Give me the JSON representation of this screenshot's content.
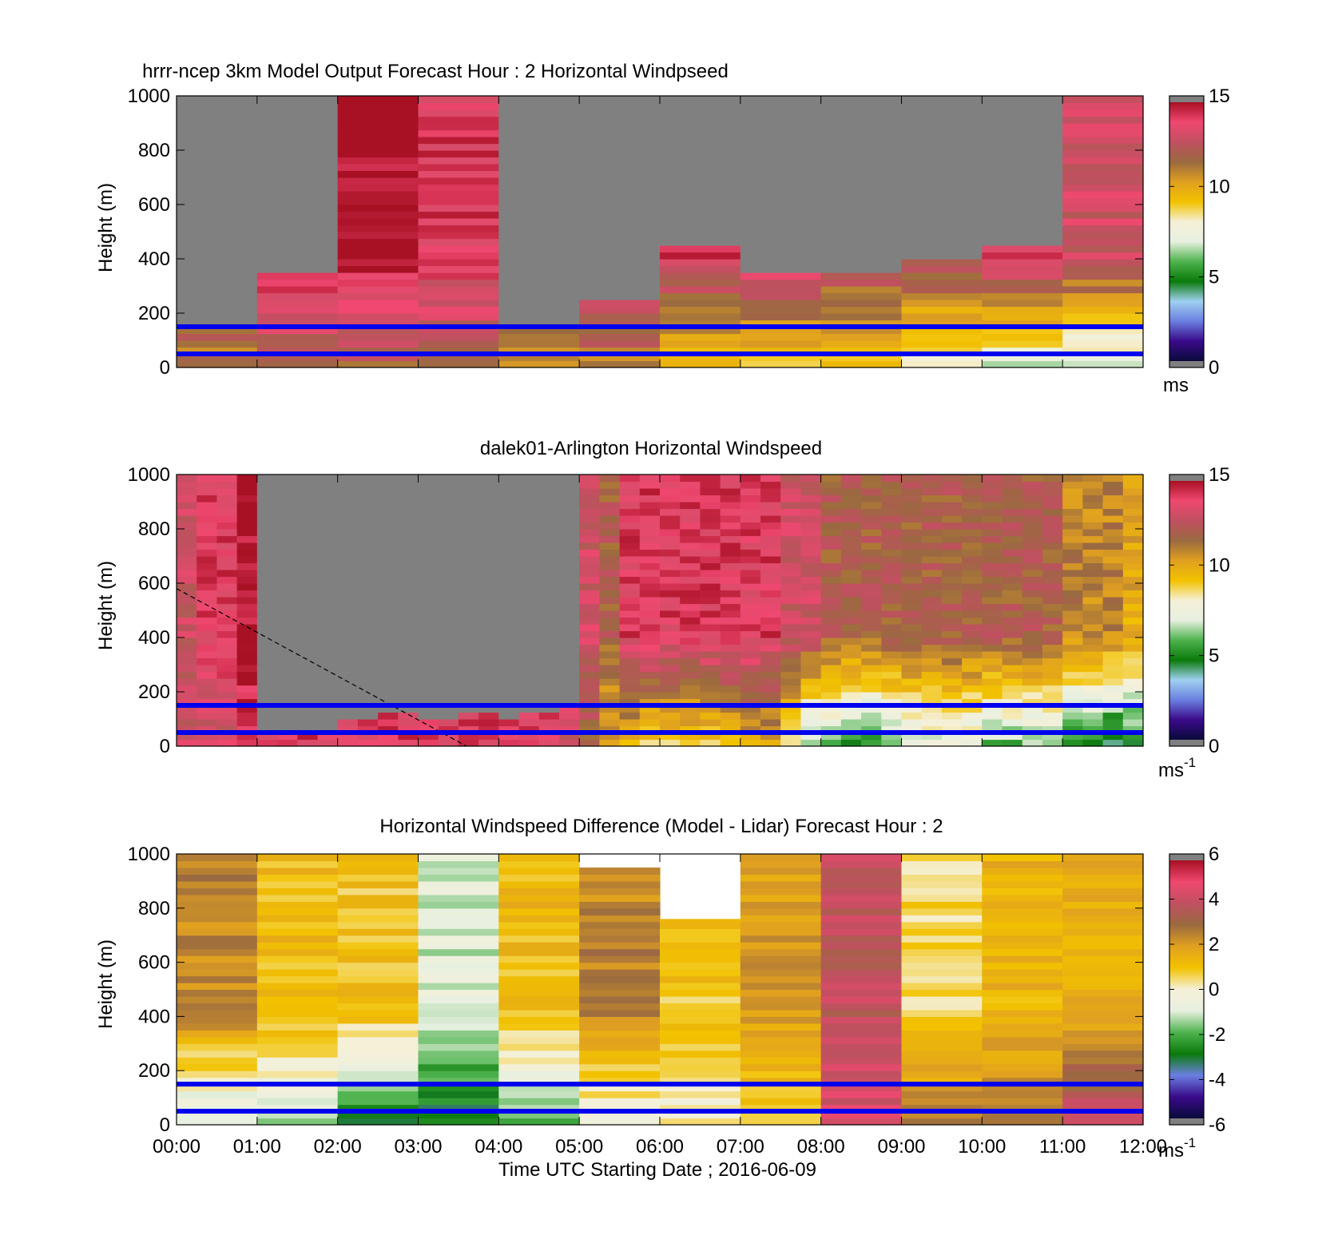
{
  "figure": {
    "xlabel": "Time UTC  Starting Date ; 2016-06-09",
    "xticks": [
      "00:00",
      "01:00",
      "02:00",
      "03:00",
      "04:00",
      "05:00",
      "06:00",
      "07:00",
      "08:00",
      "09:00",
      "10:00",
      "11:00",
      "12:00"
    ]
  },
  "colors": {
    "overlay_lines": "#0000ee",
    "nan_fill": "#808080",
    "colormap_speed": [
      "#0a0a3a",
      "#3a0a8a",
      "#6a7fe0",
      "#9fd0f0",
      "#0a7a0a",
      "#4fb34f",
      "#e8f0e0",
      "#f5f0d8",
      "#f2c200",
      "#e0a020",
      "#9a6a40",
      "#c05060",
      "#f04870",
      "#a81024"
    ],
    "colormap_diff": [
      "#0a0a3a",
      "#3a0a8a",
      "#6a7fe0",
      "#0a7a0a",
      "#4fb34f",
      "#e8f0e0",
      "#f5f0d8",
      "#f2c200",
      "#e0a020",
      "#9a6a40",
      "#c05060",
      "#f04870",
      "#a81024"
    ]
  },
  "chart_data": [
    {
      "type": "heatmap",
      "title": "hrrr-ncep 3km Model Output   Forecast Hour : 2 Horizontal Windpseed",
      "xlabel": "",
      "ylabel": "Height (m)",
      "xlim": [
        0,
        12
      ],
      "ylim": [
        0,
        1000
      ],
      "yticks": [
        "0",
        "200",
        "400",
        "600",
        "800",
        "1000"
      ],
      "colorbar": {
        "ticks": [
          "0",
          "5",
          "10",
          "15"
        ],
        "range": [
          0,
          15
        ],
        "unit": "ms"
      },
      "overlay_heights_m": [
        150,
        50
      ],
      "grid": false,
      "columns": [
        {
          "t": "00:00",
          "top_valid_m": 150,
          "surface": 11,
          "aloft": 14
        },
        {
          "t": "01:00",
          "top_valid_m": 350,
          "surface": 12,
          "aloft": 15
        },
        {
          "t": "02:00",
          "top_valid_m": 1000,
          "surface": 12,
          "aloft": 15
        },
        {
          "t": "03:00",
          "top_valid_m": 1000,
          "surface": 12,
          "aloft": 14
        },
        {
          "t": "04:00",
          "top_valid_m": 150,
          "surface": 11,
          "aloft": 14
        },
        {
          "t": "05:00",
          "top_valid_m": 250,
          "surface": 11,
          "aloft": 15
        },
        {
          "t": "06:00",
          "top_valid_m": 450,
          "surface": 9,
          "aloft": 14
        },
        {
          "t": "07:00",
          "top_valid_m": 350,
          "surface": 9,
          "aloft": 14
        },
        {
          "t": "08:00",
          "top_valid_m": 350,
          "surface": 9,
          "aloft": 13
        },
        {
          "t": "09:00",
          "top_valid_m": 400,
          "surface": 8,
          "aloft": 13
        },
        {
          "t": "10:00",
          "top_valid_m": 450,
          "surface": 7,
          "aloft": 14
        },
        {
          "t": "11:00",
          "top_valid_m": 1000,
          "surface": 7,
          "aloft": 13
        }
      ]
    },
    {
      "type": "heatmap",
      "title": "dalek01-Arlington  Horizontal Windspeed",
      "xlabel": "",
      "ylabel": "Height (m)",
      "xlim": [
        0,
        12
      ],
      "ylim": [
        0,
        1000
      ],
      "yticks": [
        "0",
        "200",
        "400",
        "600",
        "800",
        "1000"
      ],
      "colorbar": {
        "ticks": [
          "0",
          "5",
          "10",
          "15"
        ],
        "range": [
          0,
          15
        ],
        "unit": "ms",
        "unit_exp": "-1"
      },
      "overlay_heights_m": [
        150,
        50
      ],
      "dashed_line": [
        [
          0,
          580
        ],
        [
          3.6,
          0
        ]
      ],
      "profiles_per_hour": 4,
      "grid": false,
      "columns": [
        {
          "t": 0.0,
          "top_valid_m": 1000,
          "surface": 13,
          "aloft": 13
        },
        {
          "t": 0.25,
          "top_valid_m": 1000,
          "surface": 13,
          "aloft": 14
        },
        {
          "t": 0.5,
          "top_valid_m": 1000,
          "surface": 13,
          "aloft": 14
        },
        {
          "t": 0.75,
          "top_valid_m": 1000,
          "surface": 14,
          "aloft": 15
        },
        {
          "t": 1.0,
          "top_valid_m": 50,
          "surface": 14,
          "aloft": 14
        },
        {
          "t": 1.25,
          "top_valid_m": 50,
          "surface": 14,
          "aloft": 14
        },
        {
          "t": 1.5,
          "top_valid_m": 50,
          "surface": 14,
          "aloft": 14
        },
        {
          "t": 1.75,
          "top_valid_m": 50,
          "surface": 14,
          "aloft": 14
        },
        {
          "t": 2.0,
          "top_valid_m": 100,
          "surface": 14,
          "aloft": 14
        },
        {
          "t": 2.25,
          "top_valid_m": 100,
          "surface": 14,
          "aloft": 14
        },
        {
          "t": 2.5,
          "top_valid_m": 120,
          "surface": 14,
          "aloft": 14
        },
        {
          "t": 2.75,
          "top_valid_m": 120,
          "surface": 14,
          "aloft": 14
        },
        {
          "t": 3.0,
          "top_valid_m": 80,
          "surface": 14,
          "aloft": 14
        },
        {
          "t": 3.25,
          "top_valid_m": 90,
          "surface": 14,
          "aloft": 14
        },
        {
          "t": 3.5,
          "top_valid_m": 110,
          "surface": 14,
          "aloft": 14
        },
        {
          "t": 3.75,
          "top_valid_m": 120,
          "surface": 14,
          "aloft": 14
        },
        {
          "t": 4.0,
          "top_valid_m": 100,
          "surface": 14,
          "aloft": 14
        },
        {
          "t": 4.25,
          "top_valid_m": 120,
          "surface": 14,
          "aloft": 14
        },
        {
          "t": 4.5,
          "top_valid_m": 120,
          "surface": 14,
          "aloft": 14
        },
        {
          "t": 4.75,
          "top_valid_m": 150,
          "surface": 13,
          "aloft": 14
        },
        {
          "t": 5.0,
          "top_valid_m": 1000,
          "surface": 12,
          "aloft": 13
        },
        {
          "t": 5.25,
          "top_valid_m": 1000,
          "surface": 10,
          "aloft": 12
        },
        {
          "t": 5.5,
          "top_valid_m": 1000,
          "surface": 10,
          "aloft": 14
        },
        {
          "t": 5.75,
          "top_valid_m": 1000,
          "surface": 9,
          "aloft": 14
        },
        {
          "t": 6.0,
          "top_valid_m": 1000,
          "surface": 9,
          "aloft": 14
        },
        {
          "t": 6.25,
          "top_valid_m": 1000,
          "surface": 9,
          "aloft": 14
        },
        {
          "t": 6.5,
          "top_valid_m": 1000,
          "surface": 9,
          "aloft": 14
        },
        {
          "t": 6.75,
          "top_valid_m": 1000,
          "surface": 9,
          "aloft": 14
        },
        {
          "t": 7.0,
          "top_valid_m": 1000,
          "surface": 10,
          "aloft": 14
        },
        {
          "t": 7.25,
          "top_valid_m": 1000,
          "surface": 10,
          "aloft": 14
        },
        {
          "t": 7.5,
          "top_valid_m": 1000,
          "surface": 8,
          "aloft": 13
        },
        {
          "t": 7.75,
          "top_valid_m": 1000,
          "surface": 6,
          "aloft": 13
        },
        {
          "t": 8.0,
          "top_valid_m": 1000,
          "surface": 6,
          "aloft": 12
        },
        {
          "t": 8.25,
          "top_valid_m": 1000,
          "surface": 5,
          "aloft": 12
        },
        {
          "t": 8.5,
          "top_valid_m": 1000,
          "surface": 5,
          "aloft": 12
        },
        {
          "t": 8.75,
          "top_valid_m": 1000,
          "surface": 6,
          "aloft": 12
        },
        {
          "t": 9.0,
          "top_valid_m": 1000,
          "surface": 7,
          "aloft": 12
        },
        {
          "t": 9.25,
          "top_valid_m": 1000,
          "surface": 7,
          "aloft": 12
        },
        {
          "t": 9.5,
          "top_valid_m": 1000,
          "surface": 7,
          "aloft": 12
        },
        {
          "t": 9.75,
          "top_valid_m": 1000,
          "surface": 7,
          "aloft": 12
        },
        {
          "t": 10.0,
          "top_valid_m": 1000,
          "surface": 6,
          "aloft": 12
        },
        {
          "t": 10.25,
          "top_valid_m": 1000,
          "surface": 6,
          "aloft": 12
        },
        {
          "t": 10.5,
          "top_valid_m": 1000,
          "surface": 6,
          "aloft": 12
        },
        {
          "t": 10.75,
          "top_valid_m": 1000,
          "surface": 6,
          "aloft": 12
        },
        {
          "t": 11.0,
          "top_valid_m": 1000,
          "surface": 5,
          "aloft": 11
        },
        {
          "t": 11.25,
          "top_valid_m": 1000,
          "surface": 5,
          "aloft": 11
        },
        {
          "t": 11.5,
          "top_valid_m": 1000,
          "surface": 4,
          "aloft": 11
        },
        {
          "t": 11.75,
          "top_valid_m": 1000,
          "surface": 5,
          "aloft": 10
        }
      ]
    },
    {
      "type": "heatmap",
      "title": "Horizontal Windspeed Difference (Model - Lidar) Forecast Hour : 2",
      "xlabel": "Time UTC  Starting Date ; 2016-06-09",
      "ylabel": "Height (m)",
      "xlim": [
        0,
        12
      ],
      "ylim": [
        0,
        1000
      ],
      "yticks": [
        "0",
        "200",
        "400",
        "600",
        "800",
        "1000"
      ],
      "colorbar": {
        "ticks": [
          "-6",
          "-4",
          "-2",
          "0",
          "2",
          "4",
          "6"
        ],
        "range": [
          -6,
          6
        ],
        "unit": "ms",
        "unit_exp": "-1"
      },
      "overlay_heights_m": [
        150,
        50
      ],
      "grid": false,
      "columns": [
        {
          "t": "00:00",
          "top_m": 1000,
          "surface": -1.5,
          "aloft": 2.5
        },
        {
          "t": "01:00",
          "top_m": 1000,
          "surface": -1.5,
          "aloft": 1.2
        },
        {
          "t": "02:00",
          "top_m": 1000,
          "surface": -2.8,
          "aloft": 1.0
        },
        {
          "t": "03:00",
          "top_m": 1000,
          "surface": -3.2,
          "aloft": -1.0
        },
        {
          "t": "04:00",
          "top_m": 1000,
          "surface": -2.0,
          "aloft": 1.2
        },
        {
          "t": "05:00",
          "top_m": 950,
          "surface": -0.5,
          "aloft": 2.5
        },
        {
          "t": "06:00",
          "top_m": 760,
          "surface": 0.0,
          "aloft": 1.0
        },
        {
          "t": "07:00",
          "top_m": 1000,
          "surface": 1.0,
          "aloft": 2.0
        },
        {
          "t": "08:00",
          "top_m": 1000,
          "surface": 4.5,
          "aloft": 4.0
        },
        {
          "t": "09:00",
          "top_m": 1000,
          "surface": 2.5,
          "aloft": 0.5
        },
        {
          "t": "10:00",
          "top_m": 1000,
          "surface": 2.5,
          "aloft": 1.5
        },
        {
          "t": "11:00",
          "top_m": 1000,
          "surface": 4.5,
          "aloft": 1.5
        }
      ]
    }
  ]
}
